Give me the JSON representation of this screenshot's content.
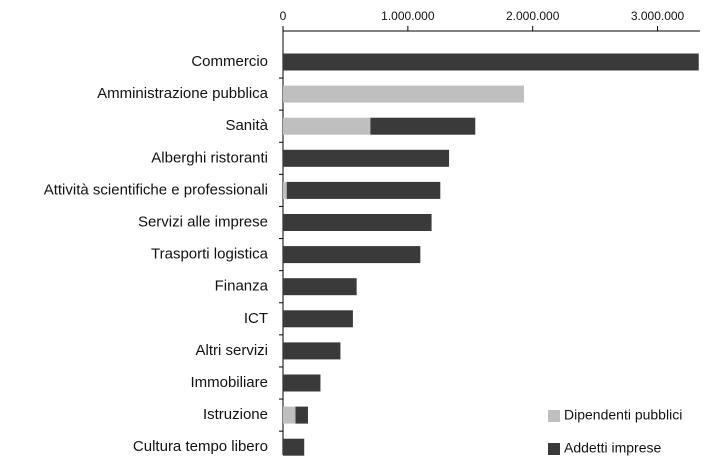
{
  "chart_data": {
    "type": "bar",
    "orientation": "horizontal",
    "stacked": true,
    "categories": [
      "Commercio",
      "Amministrazione pubblica",
      "Sanità",
      "Alberghi ristoranti",
      "Attività scientifiche e  professionali",
      "Servizi alle imprese",
      "Trasporti logistica",
      "Finanza",
      "ICT",
      "Altri servizi",
      "Immobiliare",
      "Istruzione",
      "Cultura tempo libero"
    ],
    "series": [
      {
        "name": "Dipendenti pubblici",
        "color": "#bfbfbf",
        "values": [
          0,
          1930000,
          700000,
          0,
          30000,
          0,
          0,
          0,
          0,
          0,
          0,
          100000,
          0
        ]
      },
      {
        "name": "Addetti imprese",
        "color": "#3a3a3a",
        "values": [
          3330000,
          0,
          840000,
          1330000,
          1230000,
          1190000,
          1100000,
          590000,
          560000,
          460000,
          300000,
          100000,
          170000
        ]
      }
    ],
    "xlim": [
      0,
      3340000
    ],
    "xticks": [
      0,
      {
        "value": 1000000,
        "label": "1.000.000"
      },
      {
        "value": 2000000,
        "label": "2.000.000"
      },
      {
        "value": 3000000,
        "label": "3.000.000"
      }
    ],
    "legend": "lower right"
  }
}
